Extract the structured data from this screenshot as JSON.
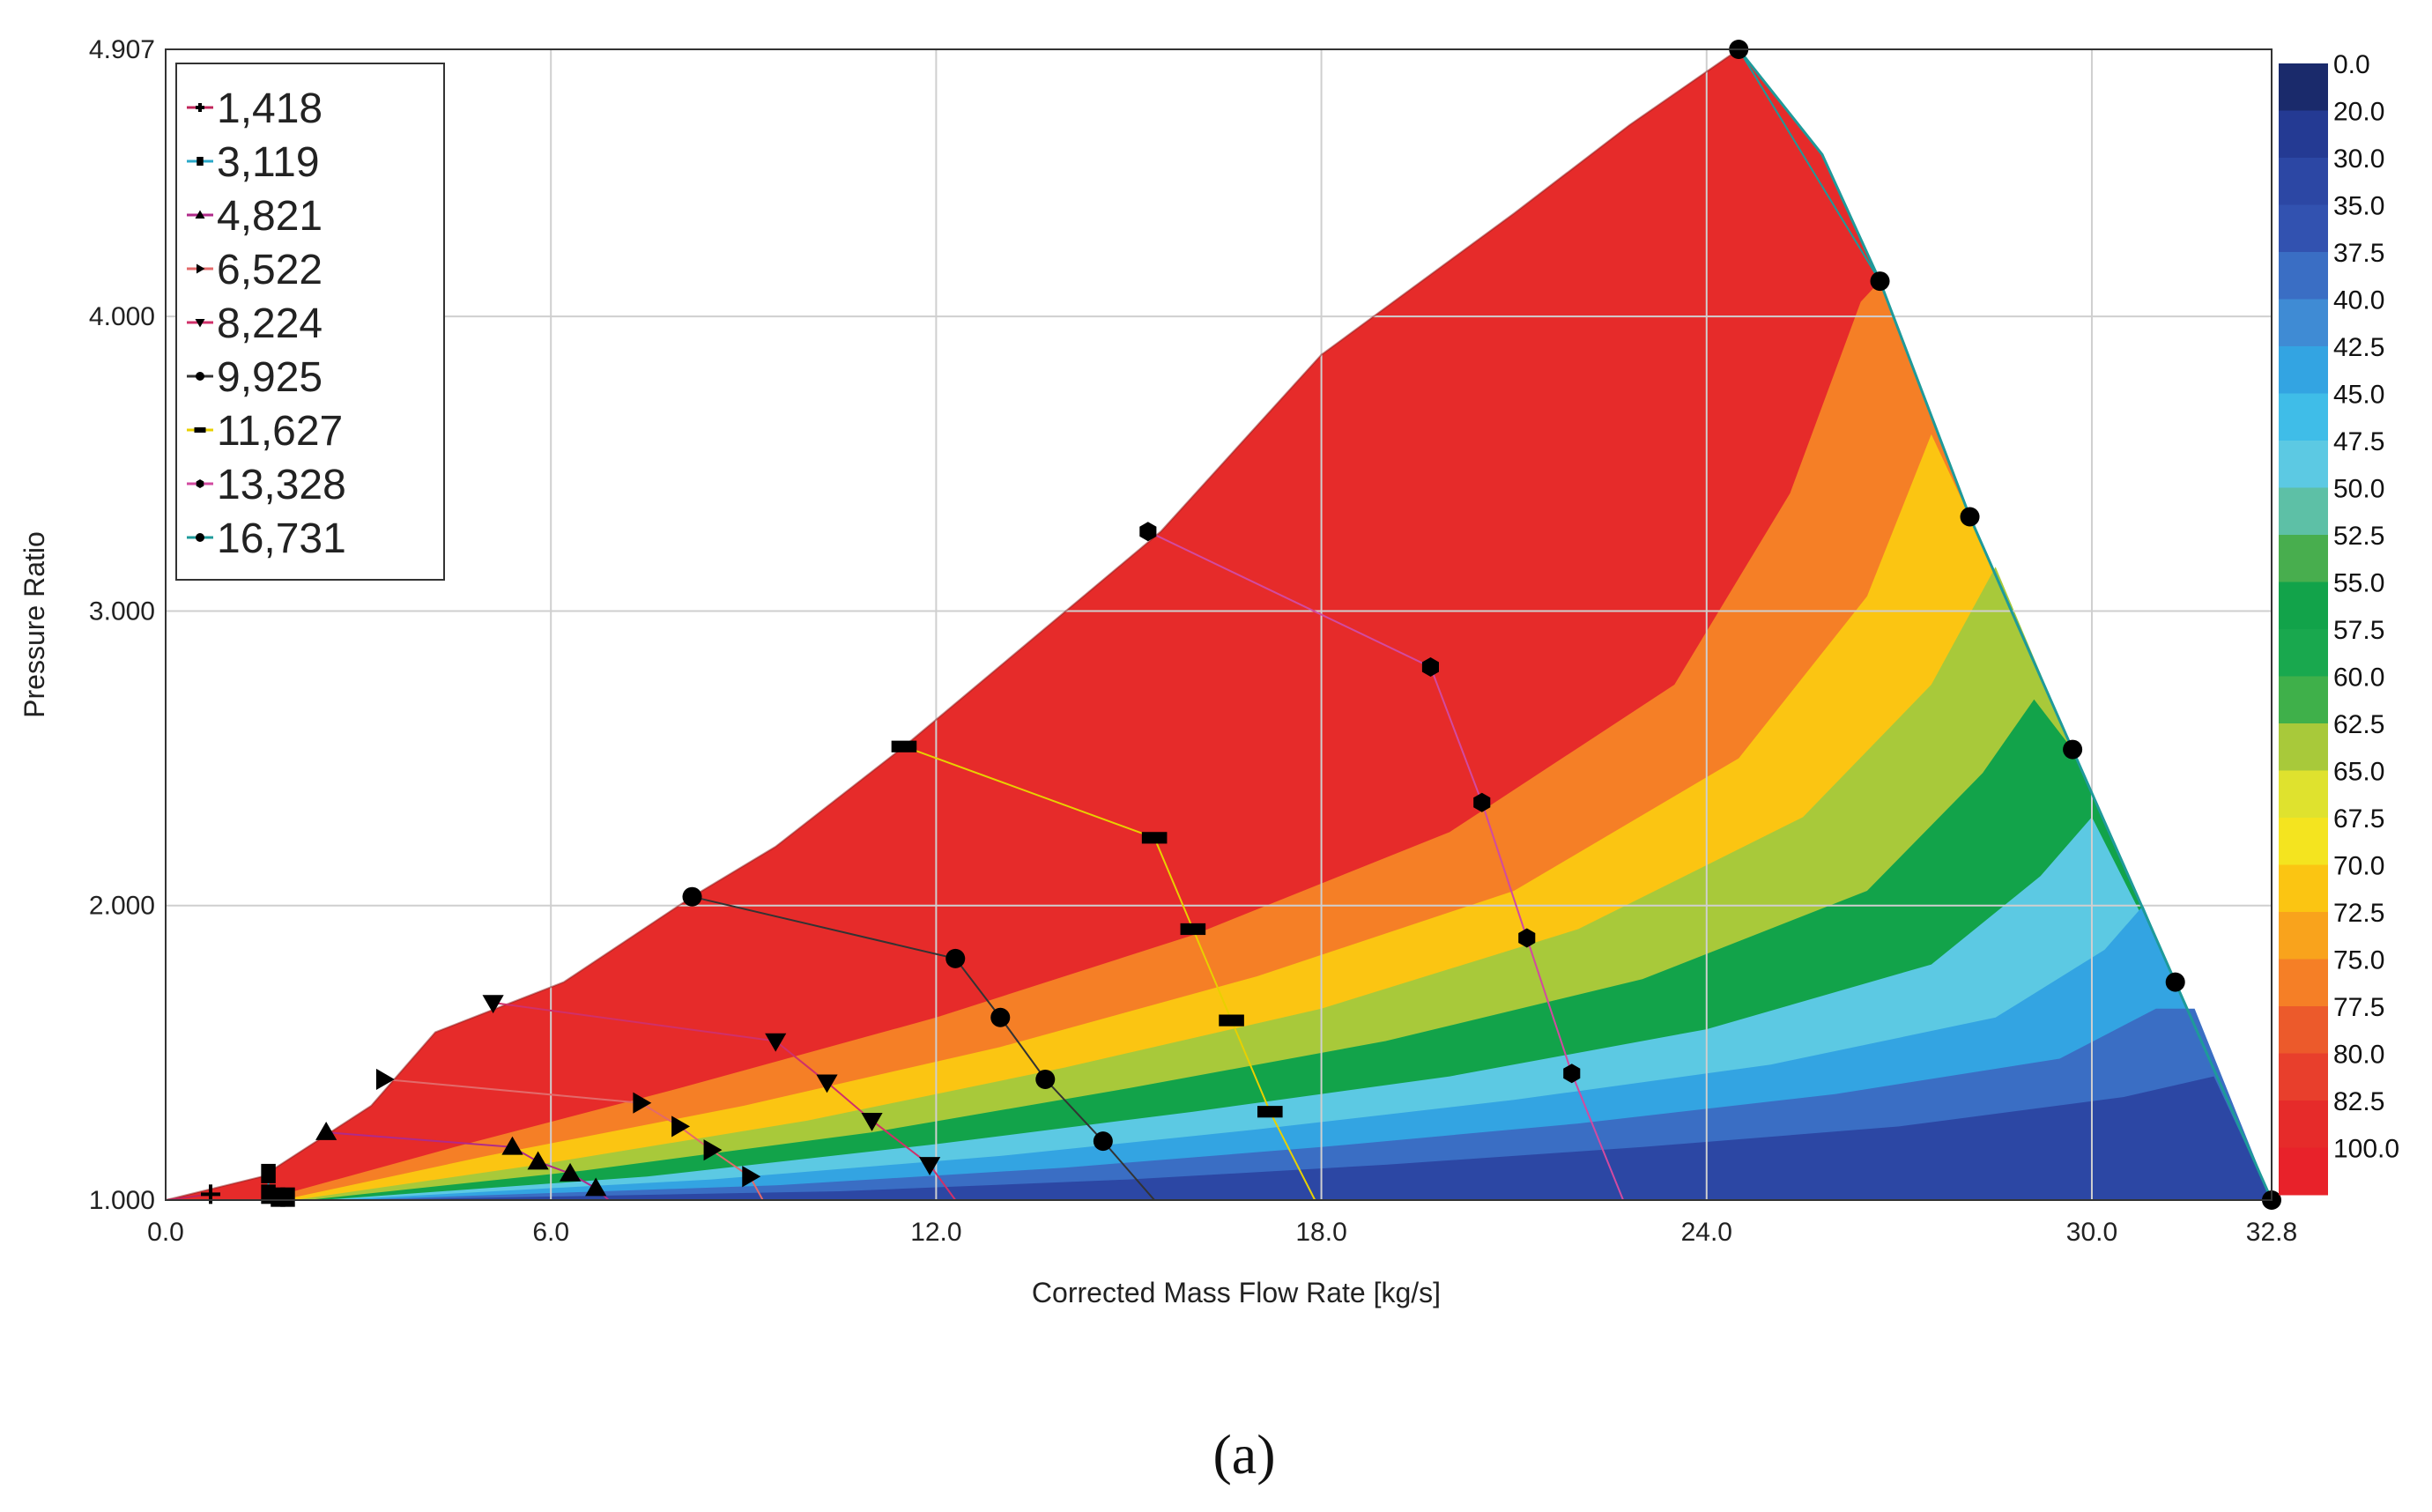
{
  "chart_data": {
    "type": "contour",
    "xlabel": "Corrected Mass Flow Rate [kg/s]",
    "ylabel": "Pressure Ratio",
    "xlim": [
      0.0,
      32.8
    ],
    "ylim": [
      1.0,
      4.907
    ],
    "x_ticks": [
      "0.0",
      "6.0",
      "12.0",
      "18.0",
      "24.0",
      "30.0",
      "32.8"
    ],
    "y_ticks": [
      "1.000",
      "2.000",
      "3.000",
      "4.000",
      "4.907"
    ],
    "x_tick_values": [
      0,
      6,
      12,
      18,
      24,
      30,
      32.8
    ],
    "y_tick_values": [
      1,
      2,
      3,
      4,
      4.907
    ],
    "grid": true,
    "legend_position": "top-left",
    "caption": "(a)",
    "colorbar": {
      "labels": [
        "0.0",
        "20.0",
        "30.0",
        "35.0",
        "37.5",
        "40.0",
        "42.5",
        "45.0",
        "47.5",
        "50.0",
        "52.5",
        "55.0",
        "57.5",
        "60.0",
        "62.5",
        "65.0",
        "67.5",
        "70.0",
        "72.5",
        "75.0",
        "77.5",
        "80.0",
        "82.5",
        "100.0"
      ],
      "colors": [
        "#1a2a6b",
        "#243a93",
        "#2c47a4",
        "#3252b0",
        "#3a6ec4",
        "#3f8bd4",
        "#33a4e2",
        "#3fbde8",
        "#5cc9e3",
        "#5dc0a6",
        "#48ae4e",
        "#12a34a",
        "#19a84e",
        "#3fb04a",
        "#a8c93a",
        "#dfe22e",
        "#f4e41f",
        "#fbc512",
        "#f9a31c",
        "#f57f26",
        "#ec5a2b",
        "#e83f2c",
        "#e62b2a",
        "#e8222a"
      ]
    },
    "surge_line": [
      [
        0.0,
        1.0
      ],
      [
        1.5,
        1.08
      ],
      [
        3.2,
        1.32
      ],
      [
        4.2,
        1.57
      ],
      [
        6.2,
        1.74
      ],
      [
        8.2,
        2.03
      ],
      [
        9.5,
        2.2
      ],
      [
        11.5,
        2.54
      ],
      [
        15.5,
        3.27
      ],
      [
        18.0,
        3.87
      ],
      [
        21.0,
        4.35
      ],
      [
        22.8,
        4.65
      ],
      [
        24.5,
        4.907
      ]
    ],
    "choke_line": [
      [
        24.5,
        4.907
      ],
      [
        25.8,
        4.55
      ],
      [
        26.7,
        4.12
      ],
      [
        28.1,
        3.32
      ],
      [
        29.7,
        2.53
      ],
      [
        31.3,
        1.74
      ],
      [
        32.8,
        1.0
      ]
    ],
    "efficiency_zones": [
      {
        "value": 82.5,
        "polygon": [
          [
            0.0,
            1.0
          ],
          [
            1.5,
            1.08
          ],
          [
            3.2,
            1.32
          ],
          [
            4.2,
            1.57
          ],
          [
            6.2,
            1.74
          ],
          [
            8.2,
            2.03
          ],
          [
            9.5,
            2.2
          ],
          [
            11.5,
            2.54
          ],
          [
            15.5,
            3.27
          ],
          [
            18.0,
            3.87
          ],
          [
            21.0,
            4.35
          ],
          [
            22.8,
            4.65
          ],
          [
            24.5,
            4.907
          ],
          [
            25.8,
            4.55
          ],
          [
            26.7,
            4.12
          ],
          [
            28.1,
            3.32
          ],
          [
            29.7,
            2.53
          ],
          [
            31.3,
            1.74
          ],
          [
            32.8,
            1.0
          ]
        ]
      },
      {
        "value": 75.0,
        "polygon": [
          [
            1.5,
            1.0
          ],
          [
            4.5,
            1.18
          ],
          [
            8.0,
            1.38
          ],
          [
            12.0,
            1.62
          ],
          [
            16.0,
            1.9
          ],
          [
            20.0,
            2.25
          ],
          [
            23.5,
            2.75
          ],
          [
            25.3,
            3.4
          ],
          [
            26.4,
            4.05
          ],
          [
            26.7,
            4.12
          ],
          [
            28.1,
            3.32
          ],
          [
            29.7,
            2.53
          ],
          [
            31.3,
            1.74
          ],
          [
            32.8,
            1.0
          ]
        ]
      },
      {
        "value": 70.0,
        "polygon": [
          [
            1.8,
            1.0
          ],
          [
            5.0,
            1.15
          ],
          [
            9.0,
            1.32
          ],
          [
            13.0,
            1.52
          ],
          [
            17.0,
            1.76
          ],
          [
            21.0,
            2.05
          ],
          [
            24.5,
            2.5
          ],
          [
            26.5,
            3.05
          ],
          [
            27.5,
            3.6
          ],
          [
            28.1,
            3.32
          ],
          [
            29.7,
            2.53
          ],
          [
            31.3,
            1.74
          ],
          [
            32.8,
            1.0
          ]
        ]
      },
      {
        "value": 62.5,
        "polygon": [
          [
            2.0,
            1.0
          ],
          [
            5.8,
            1.12
          ],
          [
            10.0,
            1.27
          ],
          [
            14.0,
            1.45
          ],
          [
            18.0,
            1.65
          ],
          [
            22.0,
            1.92
          ],
          [
            25.5,
            2.3
          ],
          [
            27.5,
            2.75
          ],
          [
            28.5,
            3.15
          ],
          [
            29.7,
            2.53
          ],
          [
            31.3,
            1.74
          ],
          [
            32.8,
            1.0
          ]
        ]
      },
      {
        "value": 55.0,
        "polygon": [
          [
            2.2,
            1.0
          ],
          [
            6.5,
            1.1
          ],
          [
            11.0,
            1.23
          ],
          [
            15.0,
            1.38
          ],
          [
            19.0,
            1.54
          ],
          [
            23.0,
            1.75
          ],
          [
            26.5,
            2.05
          ],
          [
            28.3,
            2.45
          ],
          [
            29.1,
            2.7
          ],
          [
            29.7,
            2.53
          ],
          [
            31.3,
            1.74
          ],
          [
            32.8,
            1.0
          ]
        ]
      },
      {
        "value": 47.5,
        "polygon": [
          [
            2.4,
            1.0
          ],
          [
            7.5,
            1.08
          ],
          [
            12.0,
            1.19
          ],
          [
            16.0,
            1.3
          ],
          [
            20.0,
            1.42
          ],
          [
            24.0,
            1.58
          ],
          [
            27.5,
            1.8
          ],
          [
            29.2,
            2.1
          ],
          [
            30.0,
            2.3
          ],
          [
            31.3,
            1.74
          ],
          [
            32.8,
            1.0
          ]
        ]
      },
      {
        "value": 42.5,
        "polygon": [
          [
            2.6,
            1.0
          ],
          [
            8.5,
            1.07
          ],
          [
            13.0,
            1.15
          ],
          [
            17.0,
            1.24
          ],
          [
            21.0,
            1.34
          ],
          [
            25.0,
            1.46
          ],
          [
            28.5,
            1.62
          ],
          [
            30.2,
            1.85
          ],
          [
            30.8,
            2.0
          ],
          [
            31.3,
            1.74
          ],
          [
            32.8,
            1.0
          ]
        ]
      },
      {
        "value": 37.5,
        "polygon": [
          [
            2.8,
            1.0
          ],
          [
            9.5,
            1.05
          ],
          [
            14.0,
            1.11
          ],
          [
            18.0,
            1.18
          ],
          [
            22.0,
            1.26
          ],
          [
            26.0,
            1.36
          ],
          [
            29.5,
            1.48
          ],
          [
            31.0,
            1.65
          ],
          [
            31.6,
            1.65
          ],
          [
            32.8,
            1.0
          ]
        ]
      },
      {
        "value": 30.0,
        "polygon": [
          [
            3.0,
            1.0
          ],
          [
            10.5,
            1.03
          ],
          [
            15.0,
            1.07
          ],
          [
            19.0,
            1.12
          ],
          [
            23.0,
            1.18
          ],
          [
            27.0,
            1.25
          ],
          [
            30.5,
            1.35
          ],
          [
            31.9,
            1.42
          ],
          [
            32.8,
            1.0
          ]
        ]
      }
    ],
    "series": [
      {
        "name": "1,418",
        "marker": "plus",
        "color": "#c0245a",
        "points": [
          [
            0.7,
            1.02
          ],
          [
            0.0,
            1.0
          ]
        ]
      },
      {
        "name": "3,119",
        "marker": "square",
        "color": "#2aa8c8",
        "points": [
          [
            1.6,
            1.09
          ],
          [
            1.6,
            1.02
          ],
          [
            1.75,
            1.01
          ],
          [
            1.9,
            1.01
          ],
          [
            2.0,
            1.0
          ]
        ]
      },
      {
        "name": "4,821",
        "marker": "triangle-up",
        "color": "#b02a8a",
        "points": [
          [
            2.5,
            1.23
          ],
          [
            5.4,
            1.18
          ],
          [
            5.8,
            1.13
          ],
          [
            6.3,
            1.09
          ],
          [
            6.7,
            1.04
          ],
          [
            6.9,
            1.0
          ]
        ]
      },
      {
        "name": "6,522",
        "marker": "triangle-right",
        "color": "#e36a6a",
        "points": [
          [
            3.4,
            1.41
          ],
          [
            7.4,
            1.33
          ],
          [
            8.0,
            1.25
          ],
          [
            8.5,
            1.17
          ],
          [
            9.1,
            1.08
          ],
          [
            9.3,
            1.0
          ]
        ]
      },
      {
        "name": "8,224",
        "marker": "triangle-down",
        "color": "#d0306a",
        "points": [
          [
            5.1,
            1.67
          ],
          [
            9.5,
            1.54
          ],
          [
            10.3,
            1.4
          ],
          [
            11.0,
            1.27
          ],
          [
            11.9,
            1.12
          ],
          [
            12.3,
            1.0
          ]
        ]
      },
      {
        "name": "9,925",
        "marker": "circle",
        "color": "#333333",
        "points": [
          [
            8.2,
            2.03
          ],
          [
            12.3,
            1.82
          ],
          [
            13.0,
            1.62
          ],
          [
            13.7,
            1.41
          ],
          [
            14.6,
            1.2
          ],
          [
            15.4,
            1.0
          ]
        ]
      },
      {
        "name": "11,627",
        "marker": "dash",
        "color": "#e8d000",
        "points": [
          [
            11.5,
            2.54
          ],
          [
            15.4,
            2.23
          ],
          [
            16.0,
            1.92
          ],
          [
            16.6,
            1.61
          ],
          [
            17.2,
            1.3
          ],
          [
            17.9,
            1.0
          ]
        ]
      },
      {
        "name": "13,328",
        "marker": "hexagon",
        "color": "#d24aa0",
        "points": [
          [
            15.3,
            3.27
          ],
          [
            19.7,
            2.81
          ],
          [
            20.5,
            2.35
          ],
          [
            21.2,
            1.89
          ],
          [
            21.9,
            1.43
          ],
          [
            22.7,
            1.0
          ]
        ]
      },
      {
        "name": "16,731",
        "marker": "circle",
        "color": "#1e9a9a",
        "points": [
          [
            24.5,
            4.907
          ],
          [
            26.7,
            4.12
          ],
          [
            28.1,
            3.32
          ],
          [
            29.7,
            2.53
          ],
          [
            31.3,
            1.74
          ],
          [
            32.8,
            1.0
          ]
        ]
      }
    ]
  }
}
